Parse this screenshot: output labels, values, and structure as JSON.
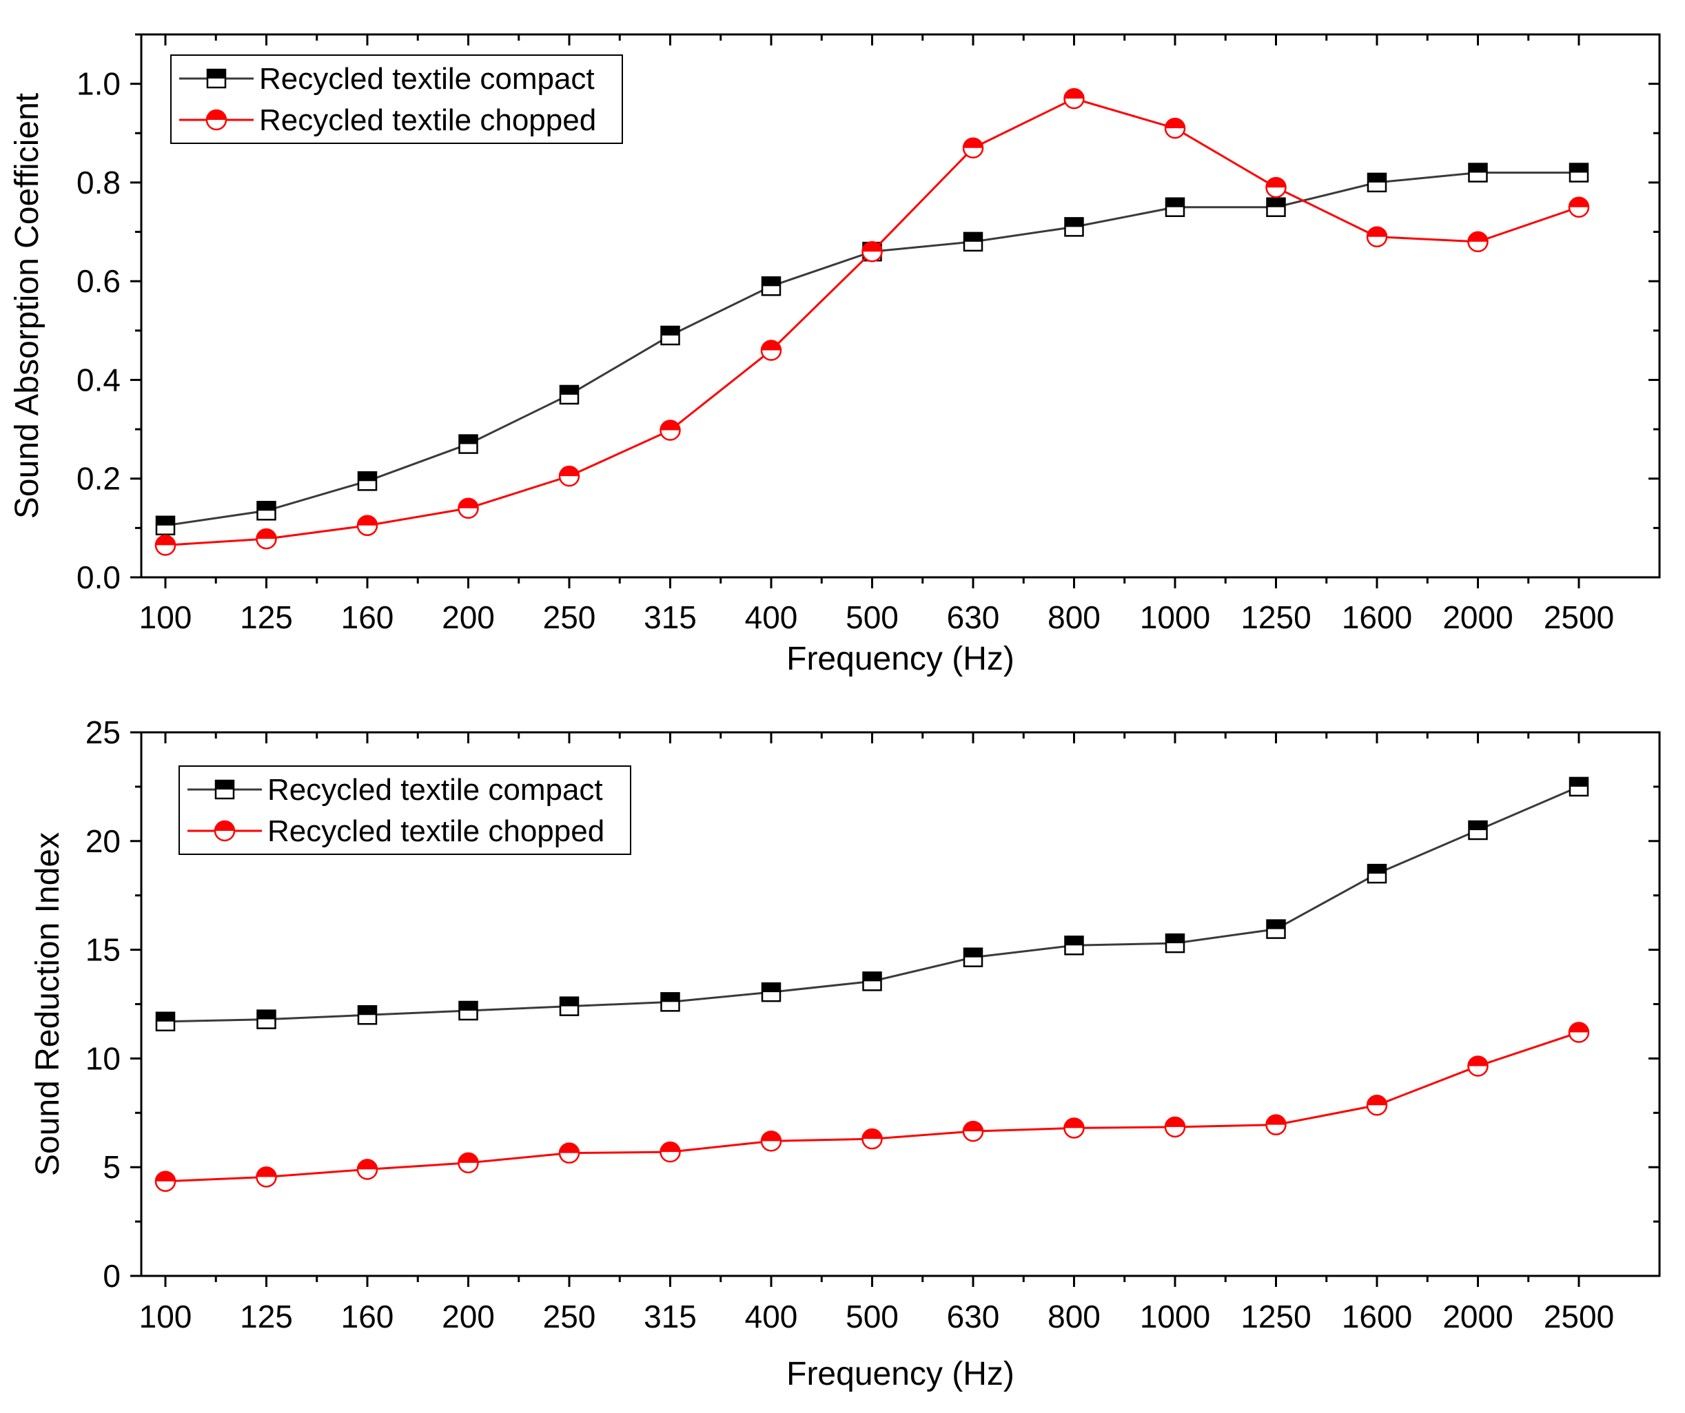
{
  "chart_data": [
    {
      "type": "line",
      "categories": [
        "100",
        "125",
        "160",
        "200",
        "250",
        "315",
        "400",
        "500",
        "630",
        "800",
        "1000",
        "1250",
        "1600",
        "2000",
        "2500"
      ],
      "series": [
        {
          "name": "Recycled textile compact",
          "color": "#3a3a3a",
          "marker": "half-filled-square",
          "values": [
            0.105,
            0.135,
            0.195,
            0.27,
            0.37,
            0.49,
            0.59,
            0.66,
            0.68,
            0.71,
            0.75,
            0.75,
            0.8,
            0.82,
            0.82
          ]
        },
        {
          "name": "Recycled textile chopped",
          "color": "#ff0000",
          "marker": "half-filled-circle",
          "values": [
            0.065,
            0.078,
            0.105,
            0.14,
            0.205,
            0.298,
            0.46,
            0.66,
            0.87,
            0.97,
            0.91,
            0.79,
            0.69,
            0.68,
            0.75
          ]
        }
      ],
      "xlabel": "Frequency (Hz)",
      "ylabel": "Sound Absorption Coefficient",
      "ylim": [
        0.0,
        1.1
      ],
      "yticks": [
        0.0,
        0.2,
        0.4,
        0.6,
        0.8,
        1.0
      ],
      "ytick_labels": [
        "0.0",
        "0.2",
        "0.4",
        "0.6",
        "0.8",
        "1.0"
      ],
      "legend": "top-left",
      "grid": false
    },
    {
      "type": "line",
      "categories": [
        "100",
        "125",
        "160",
        "200",
        "250",
        "315",
        "400",
        "500",
        "630",
        "800",
        "1000",
        "1250",
        "1600",
        "2000",
        "2500"
      ],
      "series": [
        {
          "name": "Recycled textile compact",
          "color": "#3a3a3a",
          "marker": "half-filled-square",
          "values": [
            11.7,
            11.8,
            12.0,
            12.2,
            12.4,
            12.6,
            13.05,
            13.55,
            14.65,
            15.2,
            15.3,
            15.95,
            18.5,
            20.5,
            22.5
          ]
        },
        {
          "name": "Recycled textile chopped",
          "color": "#ff0000",
          "marker": "half-filled-circle",
          "values": [
            4.35,
            4.55,
            4.9,
            5.2,
            5.65,
            5.7,
            6.2,
            6.3,
            6.65,
            6.8,
            6.85,
            6.95,
            7.85,
            9.65,
            11.2
          ]
        }
      ],
      "xlabel": "Frequency (Hz)",
      "ylabel": "Sound Reduction Index",
      "ylim": [
        0,
        25
      ],
      "yticks": [
        0,
        5,
        10,
        15,
        20,
        25
      ],
      "ytick_labels": [
        "0",
        "5",
        "10",
        "15",
        "20",
        "25"
      ],
      "legend": "top-left",
      "grid": false
    }
  ]
}
